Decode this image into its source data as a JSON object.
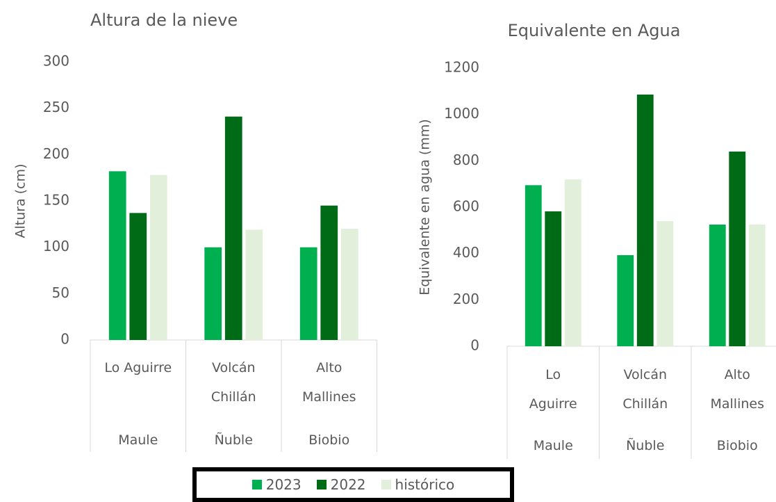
{
  "chart_data": [
    {
      "type": "bar",
      "title": "Altura de la nieve",
      "y_label": "Altura (cm)",
      "categories": [
        "Lo Aguirre",
        "Volcán\nChillán",
        "Alto\nMallines"
      ],
      "groups": [
        "Maule",
        "Ñuble",
        "Biobio"
      ],
      "series": [
        {
          "name": "2023",
          "color": "#00b050",
          "values": [
            182,
            100,
            100
          ]
        },
        {
          "name": "2022",
          "color": "#006b16",
          "values": [
            137,
            241,
            145
          ]
        },
        {
          "name": "histórico",
          "color": "#e2efda",
          "values": [
            178,
            119,
            120
          ]
        }
      ],
      "ylim": [
        0,
        300
      ],
      "yticks": [
        0,
        50,
        100,
        150,
        200,
        250,
        300
      ]
    },
    {
      "type": "bar",
      "title": "Equivalente en Agua",
      "y_label": "Equivalente en agua (mm)",
      "categories": [
        "Lo\nAguirre",
        "Volcán\nChillán",
        "Alto\nMallines"
      ],
      "groups": [
        "Maule",
        "Ñuble",
        "Biobio"
      ],
      "series": [
        {
          "color": "#00b050",
          "values": [
            695,
            393,
            525
          ]
        },
        {
          "color": "#006b16",
          "values": [
            582,
            1086,
            840
          ]
        },
        {
          "color": "#e2efda",
          "values": [
            720,
            540,
            525
          ]
        }
      ],
      "ylim": [
        0,
        1200
      ],
      "yticks": [
        0,
        200,
        400,
        600,
        800,
        1000,
        1200
      ]
    }
  ]
}
